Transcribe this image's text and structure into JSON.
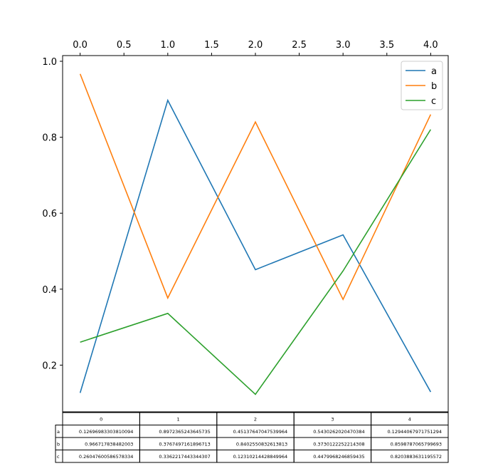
{
  "chart_data": {
    "type": "line",
    "title": "",
    "xlabel": "",
    "ylabel": "",
    "x": [
      0,
      1,
      2,
      3,
      4
    ],
    "xlim": [
      -0.2,
      4.2
    ],
    "ylim": [
      0.077,
      1.015
    ],
    "x_ticks": [
      "0.0",
      "0.5",
      "1.0",
      "1.5",
      "2.0",
      "2.5",
      "3.0",
      "3.5",
      "4.0"
    ],
    "x_axis_position": "top",
    "y_ticks": [
      "0.2",
      "0.4",
      "0.6",
      "0.8",
      "1.0"
    ],
    "grid": false,
    "legend_position": "upper right",
    "series": [
      {
        "name": "a",
        "color": "#1f77b4",
        "values": [
          0.12696983303810094,
          0.8972365243645735,
          0.45137647047539964,
          0.5430262020470384,
          0.12944067971751294
        ]
      },
      {
        "name": "b",
        "color": "#ff7f0e",
        "values": [
          0.966717838482003,
          0.3767497161896713,
          0.8402550832613813,
          0.3730122252214308,
          0.8598787065799693
        ]
      },
      {
        "name": "c",
        "color": "#2ca02c",
        "values": [
          0.26047600586578334,
          0.3362217443344307,
          0.12310214428849964,
          0.4479968246859435,
          0.8203883631195572
        ]
      }
    ],
    "table": {
      "columns": [
        "0",
        "1",
        "2",
        "3",
        "4"
      ],
      "row_labels": [
        "a",
        "b",
        "c"
      ],
      "cells": [
        [
          "0.12696983303810094",
          "0.8972365243645735",
          "0.45137647047539964",
          "0.5430262020470384",
          "0.12944067971751294"
        ],
        [
          "0.966717838482003",
          "0.3767497161896713",
          "0.8402550832613813",
          "0.3730122252214308",
          "0.8598787065799693"
        ],
        [
          "0.26047600586578334",
          "0.3362217443344307",
          "0.12310214428849964",
          "0.4479968246859435",
          "0.8203883631195572"
        ]
      ]
    }
  }
}
